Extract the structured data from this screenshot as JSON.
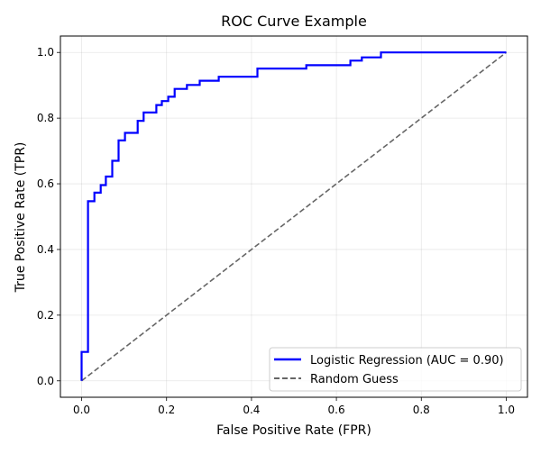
{
  "chart_data": {
    "type": "line",
    "title": "ROC Curve Example",
    "xlabel": "False Positive Rate (FPR)",
    "ylabel": "True Positive Rate (TPR)",
    "xlim": [
      -0.05,
      1.05
    ],
    "ylim": [
      -0.05,
      1.05
    ],
    "xticks": [
      0.0,
      0.2,
      0.4,
      0.6,
      0.8,
      1.0
    ],
    "yticks": [
      0.0,
      0.2,
      0.4,
      0.6,
      0.8,
      1.0
    ],
    "xtick_labels": [
      "0.0",
      "0.2",
      "0.4",
      "0.6",
      "0.8",
      "1.0"
    ],
    "ytick_labels": [
      "0.0",
      "0.2",
      "0.4",
      "0.6",
      "0.8",
      "1.0"
    ],
    "grid": true,
    "legend_position": "lower-right",
    "series": [
      {
        "name": "Logistic Regression (AUC = 0.90)",
        "color": "#0000ff",
        "style": "solid",
        "step": true,
        "x": [
          0.0,
          0.0,
          0.015,
          0.015,
          0.03,
          0.03,
          0.045,
          0.045,
          0.057,
          0.057,
          0.072,
          0.072,
          0.087,
          0.087,
          0.102,
          0.102,
          0.132,
          0.132,
          0.146,
          0.146,
          0.176,
          0.176,
          0.189,
          0.189,
          0.204,
          0.204,
          0.219,
          0.219,
          0.248,
          0.248,
          0.278,
          0.278,
          0.323,
          0.323,
          0.414,
          0.414,
          0.529,
          0.529,
          0.633,
          0.633,
          0.66,
          0.66,
          0.705,
          0.705,
          1.0
        ],
        "y": [
          0.0,
          0.088,
          0.088,
          0.547,
          0.547,
          0.573,
          0.573,
          0.596,
          0.596,
          0.622,
          0.622,
          0.67,
          0.67,
          0.732,
          0.732,
          0.755,
          0.755,
          0.792,
          0.792,
          0.817,
          0.817,
          0.84,
          0.84,
          0.852,
          0.852,
          0.865,
          0.865,
          0.889,
          0.889,
          0.901,
          0.901,
          0.914,
          0.914,
          0.926,
          0.926,
          0.951,
          0.951,
          0.961,
          0.961,
          0.975,
          0.975,
          0.985,
          0.985,
          1.0,
          1.0
        ]
      },
      {
        "name": "Random Guess",
        "color": "#666666",
        "style": "dashed",
        "x": [
          0.0,
          1.0
        ],
        "y": [
          0.0,
          1.0
        ]
      }
    ]
  }
}
